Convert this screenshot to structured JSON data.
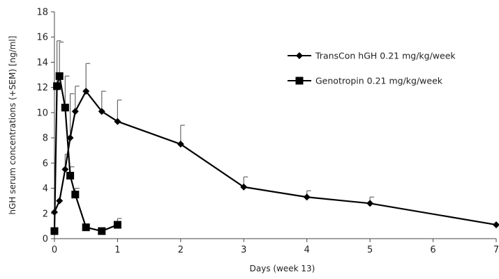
{
  "chart_data": {
    "type": "line",
    "xlabel": "Days (week 13)",
    "ylabel": "hGH serum concentrations (+SEM) [ng/ml]",
    "xlim": [
      0,
      7
    ],
    "ylim": [
      0,
      18
    ],
    "x_ticks": [
      0,
      1,
      2,
      3,
      4,
      5,
      6,
      7
    ],
    "y_ticks": [
      0,
      2,
      4,
      6,
      8,
      10,
      12,
      14,
      16,
      18
    ],
    "grid": false,
    "legend_position": "right",
    "series": [
      {
        "name": "TransCon hGH 0.21 mg/kg/week",
        "marker": "diamond",
        "color": "#000000",
        "points": [
          {
            "x": 0,
            "y": 2.1,
            "err": 0
          },
          {
            "x": 0.08,
            "y": 3.0,
            "err": 0
          },
          {
            "x": 0.17,
            "y": 5.5,
            "err": 1.2
          },
          {
            "x": 0.25,
            "y": 8.0,
            "err": 3.5
          },
          {
            "x": 0.33,
            "y": 10.1,
            "err": 2.0
          },
          {
            "x": 0.5,
            "y": 11.7,
            "err": 2.2
          },
          {
            "x": 0.75,
            "y": 10.1,
            "err": 1.6
          },
          {
            "x": 1,
            "y": 9.3,
            "err": 1.7
          },
          {
            "x": 2,
            "y": 7.5,
            "err": 1.5
          },
          {
            "x": 3,
            "y": 4.1,
            "err": 0.8
          },
          {
            "x": 4,
            "y": 3.3,
            "err": 0.5
          },
          {
            "x": 5,
            "y": 2.8,
            "err": 0.5
          },
          {
            "x": 7,
            "y": 1.1,
            "err": 0
          }
        ]
      },
      {
        "name": "Genotropin 0.21 mg/kg/week",
        "marker": "square",
        "color": "#000000",
        "points": [
          {
            "x": 0,
            "y": 0.6,
            "err": 0
          },
          {
            "x": 0.04,
            "y": 12.1,
            "err": 3.6
          },
          {
            "x": 0.08,
            "y": 12.9,
            "err": 2.7
          },
          {
            "x": 0.17,
            "y": 10.4,
            "err": 2.5
          },
          {
            "x": 0.25,
            "y": 5.0,
            "err": 0.7
          },
          {
            "x": 0.33,
            "y": 3.5,
            "err": 0.5
          },
          {
            "x": 0.5,
            "y": 0.9,
            "err": 0
          },
          {
            "x": 0.75,
            "y": 0.6,
            "err": 0
          },
          {
            "x": 1,
            "y": 1.1,
            "err": 0.5
          }
        ]
      }
    ]
  }
}
